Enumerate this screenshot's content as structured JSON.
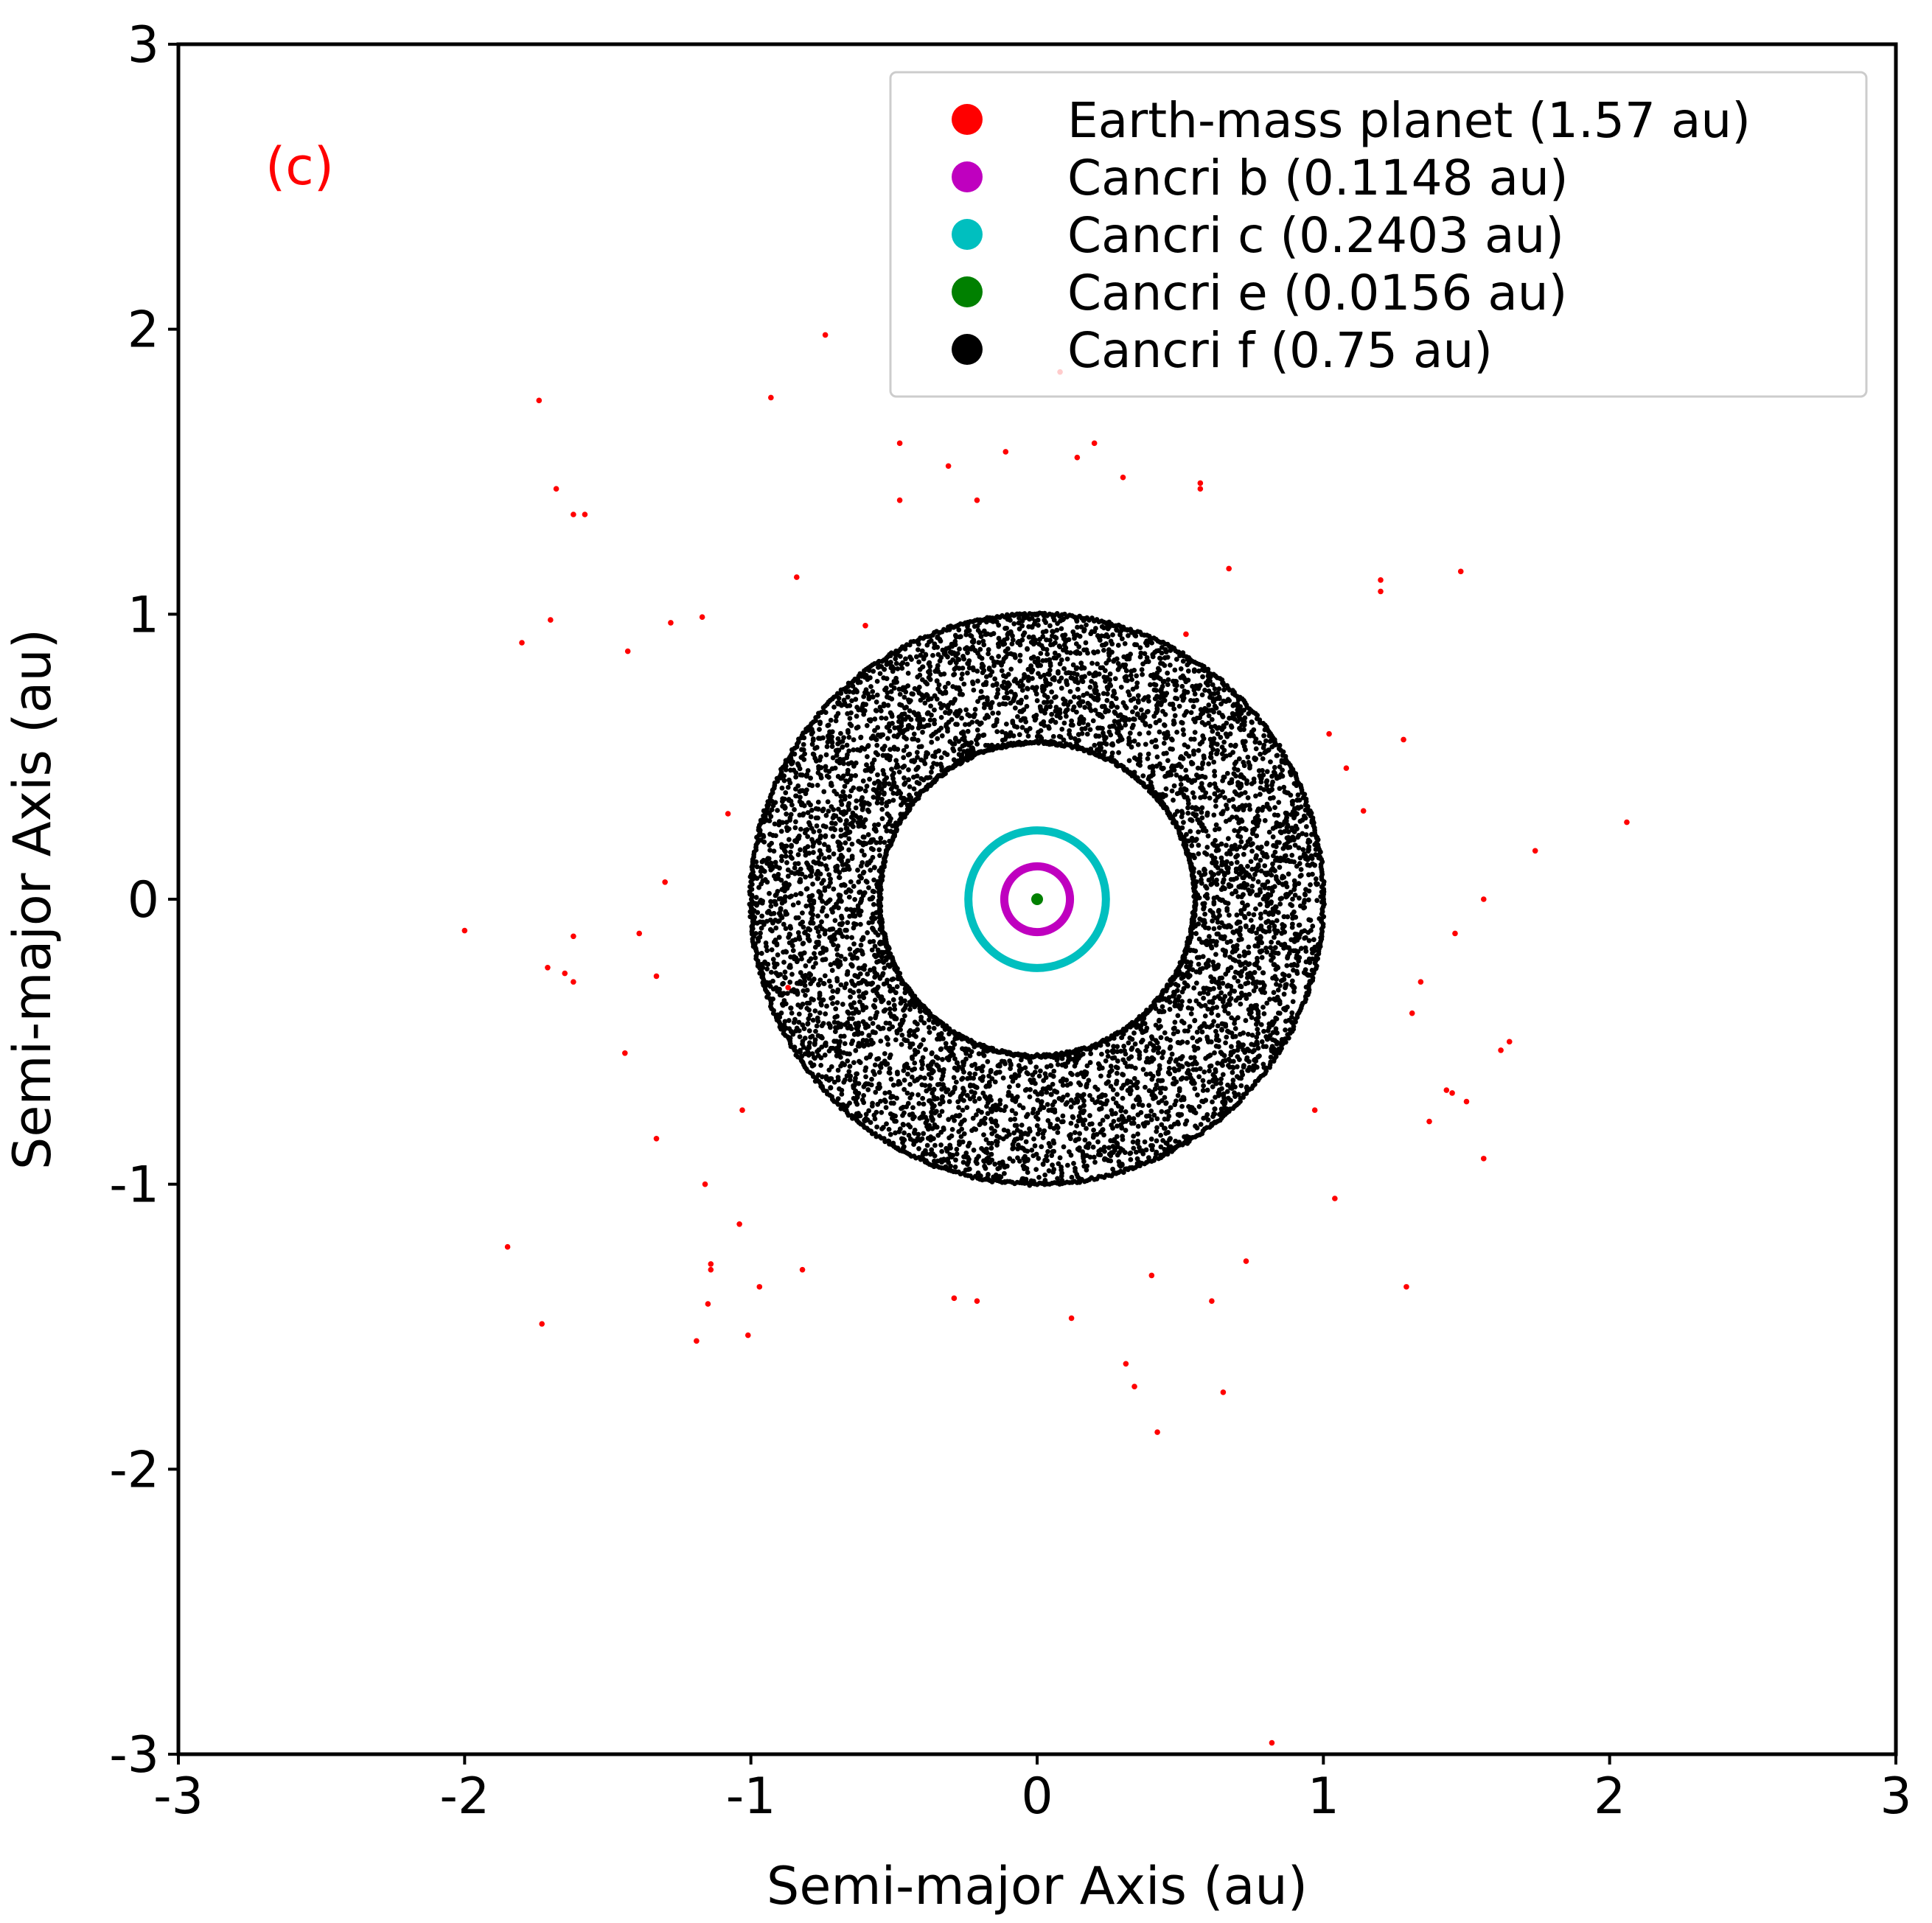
{
  "chart_data": {
    "type": "scatter",
    "panel_label": "(c)",
    "xlabel": "Semi-major Axis (au)",
    "ylabel": "Semi-major Axis (au)",
    "xlim": [
      -3,
      3
    ],
    "ylim": [
      -3,
      3
    ],
    "x_ticks": [
      {
        "value": -3,
        "label": "-3"
      },
      {
        "value": -2,
        "label": "-2"
      },
      {
        "value": -1,
        "label": "-1"
      },
      {
        "value": 0,
        "label": "0"
      },
      {
        "value": 1,
        "label": "1"
      },
      {
        "value": 2,
        "label": "2"
      },
      {
        "value": 3,
        "label": "3"
      }
    ],
    "y_ticks": [
      {
        "value": -3,
        "label": "-3"
      },
      {
        "value": -2,
        "label": "-2"
      },
      {
        "value": -1,
        "label": "-1"
      },
      {
        "value": 0,
        "label": "0"
      },
      {
        "value": 1,
        "label": "1"
      },
      {
        "value": 2,
        "label": "2"
      },
      {
        "value": 3,
        "label": "3"
      }
    ],
    "grid": false,
    "legend_position": "top-right",
    "legend": [
      {
        "label": "Earth-mass planet (1.57 au)",
        "color": "#ff0000"
      },
      {
        "label": "Cancri b (0.1148 au)",
        "color": "#bf00bf"
      },
      {
        "label": "Cancri c (0.2403 au)",
        "color": "#00bfbf"
      },
      {
        "label": "Cancri e (0.0156 au)",
        "color": "#008000"
      },
      {
        "label": "Cancri f (0.75 au)",
        "color": "#000000"
      }
    ],
    "series": [
      {
        "name": "Earth-mass planet (1.57 au)",
        "color": "#ff0000",
        "kind": "points",
        "points": [
          [
            -0.74,
            1.98
          ],
          [
            0.08,
            1.85
          ],
          [
            -1.74,
            1.75
          ],
          [
            -0.93,
            1.76
          ],
          [
            -0.48,
            1.6
          ],
          [
            -0.11,
            1.57
          ],
          [
            0.2,
            1.6
          ],
          [
            0.14,
            1.55
          ],
          [
            -0.31,
            1.52
          ],
          [
            0.3,
            1.48
          ],
          [
            0.57,
            1.46
          ],
          [
            0.57,
            1.44
          ],
          [
            -1.68,
            1.44
          ],
          [
            -0.48,
            1.4
          ],
          [
            -0.21,
            1.4
          ],
          [
            -1.62,
            1.35
          ],
          [
            -1.58,
            1.35
          ],
          [
            0.67,
            1.16
          ],
          [
            1.48,
            1.15
          ],
          [
            -0.84,
            1.13
          ],
          [
            1.2,
            1.12
          ],
          [
            1.2,
            1.08
          ],
          [
            -1.7,
            0.98
          ],
          [
            -1.28,
            0.97
          ],
          [
            -1.17,
            0.99
          ],
          [
            -0.6,
            0.96
          ],
          [
            -1.8,
            0.9
          ],
          [
            0.52,
            0.93
          ],
          [
            -1.43,
            0.87
          ],
          [
            1.02,
            0.58
          ],
          [
            1.28,
            0.56
          ],
          [
            1.08,
            0.46
          ],
          [
            1.14,
            0.31
          ],
          [
            -1.08,
            0.3
          ],
          [
            2.06,
            0.27
          ],
          [
            1.74,
            0.17
          ],
          [
            -1.3,
            0.06
          ],
          [
            1.56,
            0.0
          ],
          [
            -2.0,
            -0.11
          ],
          [
            -1.62,
            -0.13
          ],
          [
            -1.39,
            -0.12
          ],
          [
            1.46,
            -0.12
          ],
          [
            -1.71,
            -0.24
          ],
          [
            -1.65,
            -0.26
          ],
          [
            -1.62,
            -0.29
          ],
          [
            -1.33,
            -0.27
          ],
          [
            1.34,
            -0.29
          ],
          [
            -0.87,
            -0.31
          ],
          [
            1.31,
            -0.4
          ],
          [
            -1.44,
            -0.54
          ],
          [
            1.65,
            -0.5
          ],
          [
            1.62,
            -0.53
          ],
          [
            1.43,
            -0.67
          ],
          [
            1.45,
            -0.68
          ],
          [
            1.5,
            -0.71
          ],
          [
            -1.03,
            -0.74
          ],
          [
            0.97,
            -0.74
          ],
          [
            1.37,
            -0.78
          ],
          [
            -1.33,
            -0.84
          ],
          [
            1.56,
            -0.91
          ],
          [
            -1.16,
            -1.0
          ],
          [
            1.04,
            -1.05
          ],
          [
            -1.04,
            -1.14
          ],
          [
            -1.85,
            -1.22
          ],
          [
            0.73,
            -1.27
          ],
          [
            -1.14,
            -1.28
          ],
          [
            -1.14,
            -1.3
          ],
          [
            -0.82,
            -1.3
          ],
          [
            0.4,
            -1.32
          ],
          [
            -0.97,
            -1.36
          ],
          [
            1.29,
            -1.36
          ],
          [
            -0.29,
            -1.4
          ],
          [
            -0.21,
            -1.41
          ],
          [
            0.61,
            -1.41
          ],
          [
            -1.15,
            -1.42
          ],
          [
            0.12,
            -1.47
          ],
          [
            -1.73,
            -1.49
          ],
          [
            -1.01,
            -1.53
          ],
          [
            -1.19,
            -1.55
          ],
          [
            0.31,
            -1.63
          ],
          [
            0.34,
            -1.71
          ],
          [
            0.65,
            -1.73
          ],
          [
            0.42,
            -1.87
          ],
          [
            0.82,
            -2.96
          ]
        ]
      },
      {
        "name": "Cancri b (0.1148 au)",
        "color": "#bf00bf",
        "kind": "ring",
        "radius": 0.1148
      },
      {
        "name": "Cancri c (0.2403 au)",
        "color": "#00bfbf",
        "kind": "ring",
        "radius": 0.2403
      },
      {
        "name": "Cancri e (0.0156 au)",
        "color": "#008000",
        "kind": "ring",
        "radius": 0.0156
      },
      {
        "name": "Cancri f (0.75 au)",
        "color": "#000000",
        "kind": "annulus",
        "r_inner": 0.55,
        "r_outer": 1.0,
        "approx_points": 6000
      }
    ]
  }
}
